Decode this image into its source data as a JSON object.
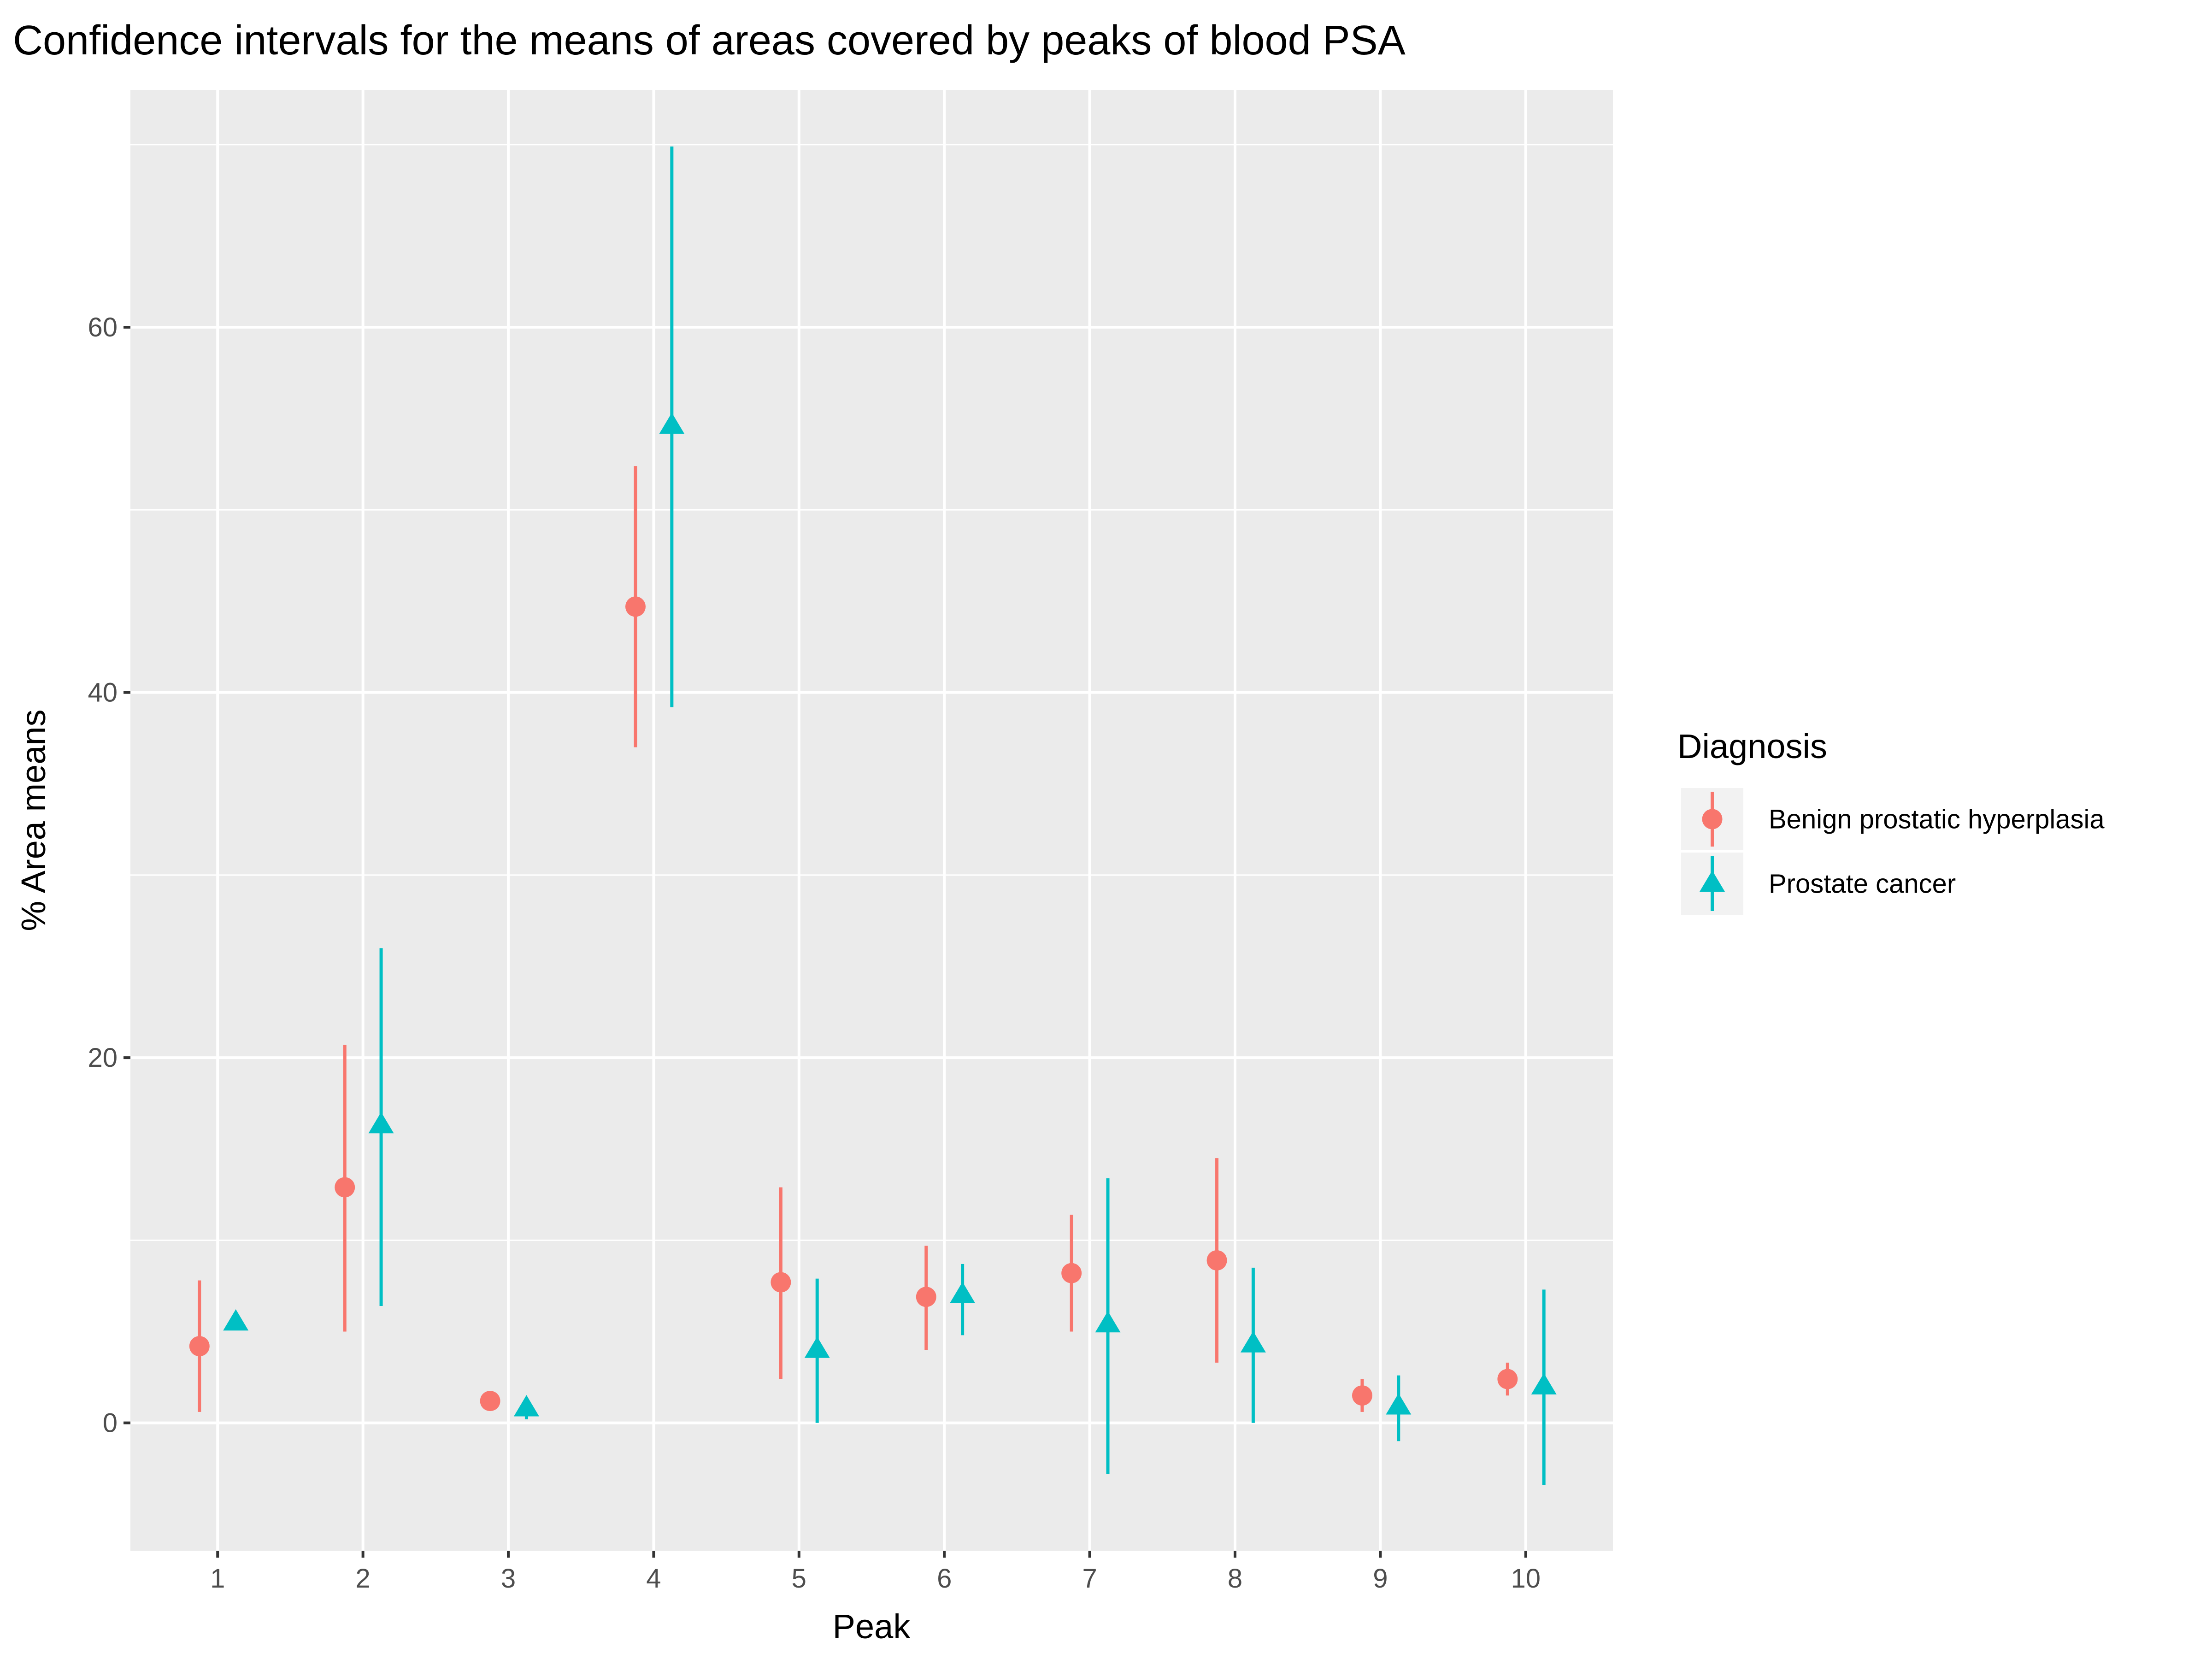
{
  "chart_data": {
    "type": "scatter",
    "subtype": "pointrange",
    "title": "Confidence intervals for the means of areas covered by peaks of blood PSA",
    "xlabel": "Peak",
    "ylabel": "% Area means",
    "categories": [
      "1",
      "2",
      "3",
      "4",
      "5",
      "6",
      "7",
      "8",
      "9",
      "10"
    ],
    "ylim": [
      -7,
      73
    ],
    "yticks": [
      0,
      20,
      40,
      60
    ],
    "grid": true,
    "legend": {
      "title": "Diagnosis",
      "position": "right"
    },
    "series": [
      {
        "name": "Benign prostatic hyperplasia",
        "color": "#F8766D",
        "shape": "circle",
        "mean": [
          4.2,
          12.9,
          1.2,
          44.7,
          7.7,
          6.9,
          8.2,
          8.9,
          1.5,
          2.4
        ],
        "lower": [
          0.6,
          5.0,
          1.0,
          37.0,
          2.4,
          4.0,
          5.0,
          3.3,
          0.6,
          1.5
        ],
        "upper": [
          7.8,
          20.7,
          1.4,
          52.4,
          12.9,
          9.7,
          11.4,
          14.5,
          2.4,
          3.3
        ]
      },
      {
        "name": "Prostate cancer",
        "color": "#00BFC4",
        "shape": "triangle",
        "mean": [
          5.5,
          16.3,
          0.8,
          54.6,
          4.0,
          7.0,
          5.4,
          4.3,
          0.9,
          2.0
        ],
        "lower": [
          5.1,
          6.4,
          0.2,
          39.2,
          0.0,
          4.8,
          -2.8,
          0.0,
          -1.0,
          -3.4
        ],
        "upper": [
          5.9,
          26.0,
          1.4,
          69.9,
          7.9,
          8.7,
          13.4,
          8.5,
          2.6,
          7.3
        ]
      }
    ]
  }
}
